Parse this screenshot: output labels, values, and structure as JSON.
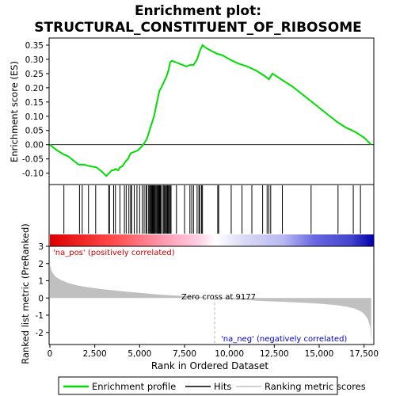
{
  "chart_data": {
    "type": "line",
    "title": "Enrichment plot: STRUCTURAL_CONSTITUENT_OF_RIBOSOME",
    "title_lines": [
      "Enrichment plot:",
      "STRUCTURAL_CONSTITUENT_OF_RIBOSOME"
    ],
    "xlabel": "Rank in Ordered Dataset",
    "es_panel": {
      "ylabel": "Enrichment score (ES)",
      "ylim": [
        -0.14,
        0.375
      ],
      "yticks": [
        -0.1,
        -0.05,
        0.0,
        0.05,
        0.1,
        0.15,
        0.2,
        0.25,
        0.3,
        0.35
      ],
      "ytick_labels": [
        "-0.10",
        "-0.05",
        "0.00",
        "0.05",
        "0.10",
        "0.15",
        "0.20",
        "0.25",
        "0.30",
        "0.35"
      ],
      "series": [
        {
          "name": "Enrichment profile",
          "color": "#00dd00",
          "points": [
            [
              0,
              0.0
            ],
            [
              400,
              -0.02
            ],
            [
              800,
              -0.035
            ],
            [
              1000,
              -0.04
            ],
            [
              1300,
              -0.055
            ],
            [
              1600,
              -0.07
            ],
            [
              1900,
              -0.07
            ],
            [
              2200,
              -0.075
            ],
            [
              2600,
              -0.08
            ],
            [
              2900,
              -0.095
            ],
            [
              3150,
              -0.11
            ],
            [
              3300,
              -0.1
            ],
            [
              3450,
              -0.09
            ],
            [
              3550,
              -0.09
            ],
            [
              3650,
              -0.085
            ],
            [
              3800,
              -0.09
            ],
            [
              3900,
              -0.08
            ],
            [
              4050,
              -0.075
            ],
            [
              4200,
              -0.06
            ],
            [
              4350,
              -0.05
            ],
            [
              4500,
              -0.03
            ],
            [
              4700,
              -0.025
            ],
            [
              4900,
              -0.02
            ],
            [
              5050,
              -0.01
            ],
            [
              5200,
              0.0
            ],
            [
              5300,
              0.01
            ],
            [
              5400,
              0.02
            ],
            [
              5500,
              0.04
            ],
            [
              5600,
              0.06
            ],
            [
              5700,
              0.08
            ],
            [
              5800,
              0.1
            ],
            [
              5900,
              0.13
            ],
            [
              6000,
              0.16
            ],
            [
              6100,
              0.19
            ],
            [
              6200,
              0.2
            ],
            [
              6350,
              0.22
            ],
            [
              6500,
              0.24
            ],
            [
              6600,
              0.26
            ],
            [
              6700,
              0.29
            ],
            [
              6800,
              0.295
            ],
            [
              7000,
              0.29
            ],
            [
              7200,
              0.285
            ],
            [
              7400,
              0.28
            ],
            [
              7600,
              0.275
            ],
            [
              7800,
              0.28
            ],
            [
              8000,
              0.28
            ],
            [
              8200,
              0.3
            ],
            [
              8350,
              0.33
            ],
            [
              8500,
              0.35
            ],
            [
              8700,
              0.34
            ],
            [
              9000,
              0.33
            ],
            [
              9300,
              0.32
            ],
            [
              9600,
              0.315
            ],
            [
              10000,
              0.3
            ],
            [
              10500,
              0.285
            ],
            [
              11000,
              0.275
            ],
            [
              11500,
              0.26
            ],
            [
              12000,
              0.24
            ],
            [
              12200,
              0.23
            ],
            [
              12400,
              0.25
            ],
            [
              13000,
              0.225
            ],
            [
              13500,
              0.205
            ],
            [
              14000,
              0.18
            ],
            [
              14500,
              0.155
            ],
            [
              15000,
              0.13
            ],
            [
              15500,
              0.105
            ],
            [
              16000,
              0.08
            ],
            [
              16500,
              0.06
            ],
            [
              17000,
              0.045
            ],
            [
              17500,
              0.025
            ],
            [
              17900,
              0.0
            ]
          ]
        }
      ]
    },
    "hits_panel": {
      "series": [
        {
          "name": "Hits",
          "color": "#000000"
        }
      ],
      "hit_ranks": [
        780,
        1650,
        1800,
        2150,
        2550,
        3280,
        3320,
        3550,
        3650,
        3900,
        4150,
        4250,
        4400,
        4500,
        4550,
        4700,
        4850,
        5000,
        5150,
        5250,
        5350,
        5400,
        5500,
        5550,
        5600,
        5620,
        5660,
        5700,
        5720,
        5760,
        5800,
        5850,
        5900,
        5950,
        6000,
        6030,
        6060,
        6100,
        6130,
        6170,
        6200,
        6300,
        6350,
        6400,
        6450,
        6500,
        6550,
        6600,
        6650,
        6700,
        6750,
        7050,
        7500,
        7800,
        7900,
        8000,
        8200,
        8300,
        8350,
        8450,
        8500,
        9350,
        9400,
        10100,
        10700,
        11250,
        11850,
        12100,
        12200,
        12300,
        12950,
        14550,
        16050,
        16900,
        17300
      ],
      "color_bar_stops": [
        "#ff0000",
        "#ff9aa2",
        "#ffffff",
        "#c8c8ff",
        "#3333cc",
        "#0000aa"
      ]
    },
    "metric_panel": {
      "ylabel": "Ranked list metric (PreRanked)",
      "ylim": [
        -2.7,
        3.0
      ],
      "yticks": [
        -2,
        -1,
        0,
        1,
        2,
        3
      ],
      "ytick_labels": [
        "-2",
        "-1",
        "0",
        "1",
        "2",
        "3"
      ],
      "series": [
        {
          "name": "Ranking metric scores",
          "color": "#c0c0c0",
          "points": [
            [
              0,
              1.9
            ],
            [
              100,
              1.55
            ],
            [
              300,
              1.25
            ],
            [
              600,
              1.05
            ],
            [
              1000,
              0.88
            ],
            [
              1500,
              0.74
            ],
            [
              2000,
              0.64
            ],
            [
              3000,
              0.5
            ],
            [
              4000,
              0.4
            ],
            [
              5000,
              0.3
            ],
            [
              6000,
              0.21
            ],
            [
              7000,
              0.14
            ],
            [
              8000,
              0.08
            ],
            [
              9177,
              0.0
            ],
            [
              10000,
              -0.06
            ],
            [
              11000,
              -0.12
            ],
            [
              12000,
              -0.18
            ],
            [
              13000,
              -0.22
            ],
            [
              14000,
              -0.27
            ],
            [
              15000,
              -0.33
            ],
            [
              16000,
              -0.42
            ],
            [
              16500,
              -0.5
            ],
            [
              17000,
              -0.62
            ],
            [
              17300,
              -0.76
            ],
            [
              17500,
              -0.92
            ],
            [
              17700,
              -1.2
            ],
            [
              17850,
              -1.7
            ],
            [
              17900,
              -2.55
            ]
          ]
        }
      ],
      "annotations": {
        "pos_label": "'na_pos' (positively correlated)",
        "neg_label": "'na_neg' (negatively correlated)",
        "zero_cross_label": "Zero cross at 9177",
        "zero_cross_rank": 9177
      }
    },
    "xlim": [
      0,
      18000
    ],
    "xticks": [
      0,
      2500,
      5000,
      7500,
      10000,
      12500,
      15000,
      17500
    ],
    "xtick_labels": [
      "0",
      "2,500",
      "5,000",
      "7,500",
      "10,000",
      "12,500",
      "15,000",
      "17,500"
    ],
    "legend": {
      "placement": "bottom",
      "entries": [
        "Enrichment profile",
        "Hits",
        "Ranking metric scores"
      ]
    },
    "grid": false
  }
}
